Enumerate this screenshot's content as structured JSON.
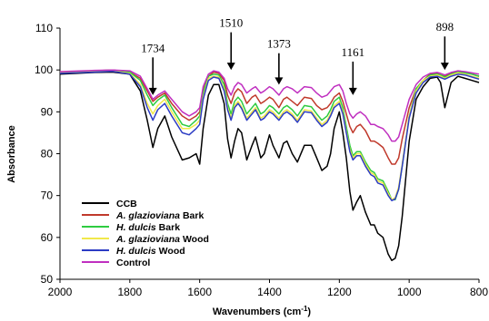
{
  "chart_data": {
    "type": "line",
    "title": "",
    "xlabel": "Wavenumbers (cm",
    "xlabel_sup": "-1",
    "xlabel_close": ")",
    "ylabel": "Absorbance",
    "xlim": [
      2000,
      800
    ],
    "ylim": [
      50,
      110
    ],
    "x_reversed": true,
    "x_ticks": [
      2000,
      1800,
      1600,
      1400,
      1200,
      1000,
      800
    ],
    "y_ticks": [
      50,
      60,
      70,
      80,
      90,
      100,
      110
    ],
    "grid": false,
    "legend_position": "bottom-left",
    "annotations": [
      {
        "label": "1734",
        "x": 1734,
        "y_tip": 94,
        "y_tail": 103
      },
      {
        "label": "1510",
        "x": 1510,
        "y_tip": 100,
        "y_tail": 109
      },
      {
        "label": "1373",
        "x": 1373,
        "y_tip": 96.5,
        "y_tail": 104
      },
      {
        "label": "1161",
        "x": 1161,
        "y_tip": 94,
        "y_tail": 102
      },
      {
        "label": "898",
        "x": 898,
        "y_tip": 100,
        "y_tail": 108
      }
    ],
    "series": [
      {
        "name": "CCB",
        "legend": [
          {
            "text": "CCB",
            "italic": false
          }
        ],
        "color": "#000000",
        "x": [
          2000,
          1900,
          1850,
          1800,
          1770,
          1750,
          1734,
          1720,
          1700,
          1680,
          1650,
          1630,
          1610,
          1600,
          1590,
          1575,
          1560,
          1545,
          1530,
          1520,
          1510,
          1500,
          1490,
          1480,
          1465,
          1450,
          1440,
          1425,
          1415,
          1400,
          1390,
          1373,
          1360,
          1350,
          1335,
          1320,
          1300,
          1280,
          1265,
          1250,
          1235,
          1225,
          1215,
          1200,
          1190,
          1180,
          1170,
          1161,
          1150,
          1140,
          1125,
          1110,
          1100,
          1090,
          1075,
          1060,
          1050,
          1040,
          1030,
          1020,
          1000,
          980,
          960,
          940,
          920,
          910,
          898,
          880,
          860,
          840,
          820,
          800
        ],
        "y": [
          99,
          99.4,
          99.5,
          99,
          95,
          88,
          81.5,
          86,
          89,
          84,
          78.5,
          79,
          80,
          77.5,
          86,
          94,
          96.5,
          96.5,
          92,
          83.5,
          79,
          83,
          86,
          85,
          78.5,
          82,
          84,
          79,
          80,
          84.5,
          82,
          79,
          82.5,
          83,
          80,
          78,
          82,
          82,
          79,
          76,
          77,
          80,
          86,
          90,
          85,
          79,
          71,
          66.5,
          68.5,
          70,
          66,
          63,
          63,
          61,
          60,
          56,
          54.5,
          55,
          58,
          65,
          83,
          93,
          96,
          98,
          98.3,
          97,
          91,
          97,
          98.5,
          98,
          97.5,
          97
        ]
      },
      {
        "name": "A. glazioviana Bark",
        "legend": [
          {
            "text": "A. glazioviana",
            "italic": true
          },
          {
            "text": " Bark",
            "italic": false
          }
        ],
        "color": "#c0392b",
        "x": [
          2000,
          1900,
          1850,
          1800,
          1770,
          1750,
          1734,
          1720,
          1700,
          1680,
          1650,
          1630,
          1610,
          1600,
          1590,
          1575,
          1560,
          1545,
          1530,
          1520,
          1510,
          1500,
          1490,
          1480,
          1465,
          1450,
          1440,
          1425,
          1415,
          1400,
          1390,
          1373,
          1360,
          1350,
          1335,
          1320,
          1300,
          1280,
          1265,
          1250,
          1235,
          1225,
          1215,
          1200,
          1190,
          1180,
          1170,
          1161,
          1150,
          1140,
          1125,
          1110,
          1100,
          1090,
          1075,
          1060,
          1050,
          1040,
          1030,
          1020,
          1000,
          980,
          960,
          940,
          920,
          910,
          898,
          880,
          860,
          840,
          820,
          800
        ],
        "y": [
          99.5,
          99.8,
          100,
          99.5,
          98,
          95,
          92.5,
          93.5,
          94.5,
          92,
          89,
          88,
          89,
          90,
          95,
          98.5,
          99.5,
          99.2,
          97.5,
          94,
          92,
          94.5,
          95.5,
          94.8,
          92,
          93.5,
          94,
          92,
          92.5,
          93.5,
          93,
          91,
          93,
          93.5,
          92.5,
          91.5,
          93.5,
          93.2,
          91.5,
          90.5,
          91,
          92,
          93.5,
          94.5,
          92.5,
          89.5,
          86.5,
          85,
          86.5,
          87,
          85.5,
          83,
          83,
          82.5,
          81.5,
          79,
          77.5,
          77.5,
          79,
          83.5,
          91,
          95.5,
          97.5,
          99,
          99.2,
          98.8,
          98.5,
          99.2,
          99.8,
          99.5,
          99,
          98.5
        ]
      },
      {
        "name": "H. dulcis Bark",
        "legend": [
          {
            "text": "H. dulcis",
            "italic": true
          },
          {
            "text": " Bark",
            "italic": false
          }
        ],
        "color": "#2ecc40",
        "x": [
          2000,
          1900,
          1850,
          1800,
          1770,
          1750,
          1734,
          1720,
          1700,
          1680,
          1650,
          1630,
          1610,
          1600,
          1590,
          1575,
          1560,
          1545,
          1530,
          1520,
          1510,
          1500,
          1490,
          1480,
          1465,
          1450,
          1440,
          1425,
          1415,
          1400,
          1390,
          1373,
          1360,
          1350,
          1335,
          1320,
          1300,
          1280,
          1265,
          1250,
          1235,
          1225,
          1215,
          1200,
          1190,
          1180,
          1170,
          1161,
          1150,
          1140,
          1125,
          1110,
          1100,
          1090,
          1075,
          1060,
          1050,
          1040,
          1030,
          1020,
          1000,
          980,
          960,
          940,
          920,
          910,
          898,
          880,
          860,
          840,
          820,
          800
        ],
        "y": [
          99.5,
          99.8,
          100,
          99.5,
          97.5,
          94,
          91.5,
          92.8,
          94,
          91,
          87,
          86.5,
          88,
          89,
          94.5,
          98.5,
          99,
          98.8,
          96.5,
          92,
          89.5,
          92.5,
          93.5,
          92.5,
          89.5,
          91,
          92,
          89.5,
          90,
          91.5,
          91,
          89.5,
          91,
          91.5,
          90.5,
          89,
          91.5,
          91.2,
          89.5,
          88,
          89,
          90.5,
          92.5,
          93.5,
          91,
          86.5,
          82,
          79.5,
          80.5,
          80.5,
          78,
          76,
          75.5,
          74,
          73.5,
          71,
          69,
          69,
          71.5,
          77,
          89,
          95.5,
          97.5,
          98.8,
          99,
          98.8,
          98.3,
          99,
          99.5,
          99.3,
          99,
          98.5
        ]
      },
      {
        "name": "A. glazioviana Wood",
        "legend": [
          {
            "text": "A. glazioviana",
            "italic": true
          },
          {
            "text": " Wood",
            "italic": false
          }
        ],
        "color": "#f1e84a",
        "x": [
          2000,
          1900,
          1850,
          1800,
          1770,
          1750,
          1734,
          1720,
          1700,
          1680,
          1650,
          1630,
          1610,
          1600,
          1590,
          1575,
          1560,
          1545,
          1530,
          1520,
          1510,
          1500,
          1490,
          1480,
          1465,
          1450,
          1440,
          1425,
          1415,
          1400,
          1390,
          1373,
          1360,
          1350,
          1335,
          1320,
          1300,
          1280,
          1265,
          1250,
          1235,
          1225,
          1215,
          1200,
          1190,
          1180,
          1170,
          1161,
          1150,
          1140,
          1125,
          1110,
          1100,
          1090,
          1075,
          1060,
          1050,
          1040,
          1030,
          1020,
          1000,
          980,
          960,
          940,
          920,
          910,
          898,
          880,
          860,
          840,
          820,
          800
        ],
        "y": [
          99.3,
          99.6,
          99.8,
          99.2,
          96.5,
          92,
          89.5,
          91.5,
          93,
          90,
          86,
          86,
          87,
          88,
          93.5,
          98,
          98.5,
          98.3,
          95.5,
          91,
          88.5,
          91.5,
          92.5,
          91.2,
          88.5,
          90,
          91,
          88.5,
          89,
          90.5,
          90,
          88.5,
          90,
          90.5,
          89.5,
          88,
          90.5,
          90.2,
          88.5,
          87,
          88,
          89.5,
          91.5,
          92.5,
          90,
          85.5,
          81,
          79,
          80,
          80,
          77.5,
          75.5,
          75,
          73.5,
          73,
          70.5,
          69,
          69.5,
          72,
          77.5,
          89,
          95,
          97.5,
          98.5,
          98.8,
          98.5,
          98,
          98.8,
          99.3,
          99,
          98.5,
          98
        ]
      },
      {
        "name": "H. dulcis Wood",
        "legend": [
          {
            "text": "H. dulcis",
            "italic": true
          },
          {
            "text": " Wood",
            "italic": false
          }
        ],
        "color": "#2c3cc4",
        "x": [
          2000,
          1900,
          1850,
          1800,
          1770,
          1750,
          1734,
          1720,
          1700,
          1680,
          1650,
          1630,
          1610,
          1600,
          1590,
          1575,
          1560,
          1545,
          1530,
          1520,
          1510,
          1500,
          1490,
          1480,
          1465,
          1450,
          1440,
          1425,
          1415,
          1400,
          1390,
          1373,
          1360,
          1350,
          1335,
          1320,
          1300,
          1280,
          1265,
          1250,
          1235,
          1225,
          1215,
          1200,
          1190,
          1180,
          1170,
          1161,
          1150,
          1140,
          1125,
          1110,
          1100,
          1090,
          1075,
          1060,
          1050,
          1040,
          1030,
          1020,
          1000,
          980,
          960,
          940,
          920,
          910,
          898,
          880,
          860,
          840,
          820,
          800
        ],
        "y": [
          99.2,
          99.5,
          99.7,
          99,
          96,
          91,
          88,
          90.5,
          92,
          89,
          85,
          84.5,
          86,
          87,
          93,
          97.5,
          98.3,
          98,
          95,
          90.5,
          88,
          91,
          92,
          90.8,
          88,
          89.5,
          90.5,
          88,
          88.5,
          90,
          89.5,
          88,
          89.5,
          90,
          89,
          87.5,
          90,
          89.8,
          88,
          86.5,
          87.5,
          89,
          91,
          92,
          89.5,
          85,
          80.5,
          78.5,
          79.5,
          79.5,
          77,
          75,
          74.5,
          73,
          72.5,
          70,
          68.8,
          69.2,
          71.5,
          77,
          88.5,
          94.5,
          97,
          98.3,
          98.5,
          98.2,
          97.8,
          98.5,
          99,
          98.8,
          98.3,
          97.8
        ]
      },
      {
        "name": "Control",
        "legend": [
          {
            "text": "Control",
            "italic": false
          }
        ],
        "color": "#c02fc0",
        "x": [
          2000,
          1900,
          1850,
          1800,
          1770,
          1750,
          1734,
          1720,
          1700,
          1680,
          1650,
          1630,
          1610,
          1600,
          1590,
          1575,
          1560,
          1545,
          1530,
          1520,
          1510,
          1500,
          1490,
          1480,
          1465,
          1450,
          1440,
          1425,
          1415,
          1400,
          1390,
          1373,
          1360,
          1350,
          1335,
          1320,
          1300,
          1280,
          1265,
          1250,
          1235,
          1225,
          1215,
          1200,
          1190,
          1180,
          1170,
          1161,
          1150,
          1140,
          1125,
          1110,
          1100,
          1090,
          1075,
          1060,
          1050,
          1040,
          1030,
          1020,
          1000,
          980,
          960,
          940,
          920,
          910,
          898,
          880,
          860,
          840,
          820,
          800
        ],
        "y": [
          99.6,
          99.9,
          100,
          99.8,
          98.5,
          95.5,
          93,
          94,
          95,
          93,
          90,
          89,
          90,
          91,
          96,
          99,
          99.8,
          99.5,
          98,
          95.5,
          94,
          96,
          97,
          96.5,
          94.5,
          95.5,
          96,
          94.5,
          95,
          96,
          95.5,
          94,
          95.5,
          96,
          95.5,
          94.5,
          96,
          95.8,
          94.5,
          93.5,
          94,
          95,
          96,
          96.5,
          95,
          92,
          89.5,
          88.5,
          89.5,
          90,
          89,
          87,
          87,
          86.5,
          86,
          84.5,
          83,
          83,
          84,
          87,
          93,
          96.5,
          98.3,
          99.2,
          99.4,
          99.2,
          98.8,
          99.4,
          99.8,
          99.6,
          99.3,
          99
        ]
      }
    ]
  }
}
